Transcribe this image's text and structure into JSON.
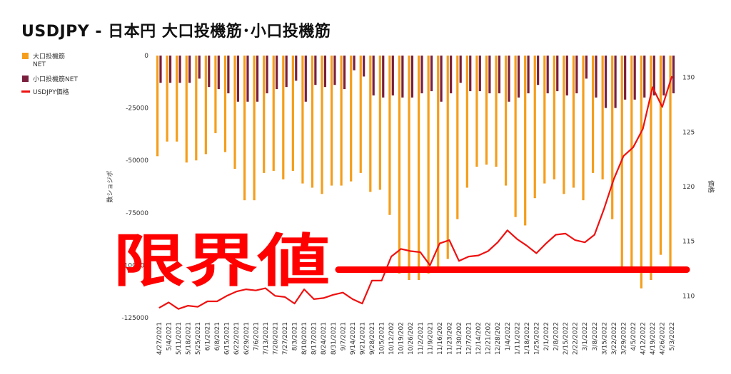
{
  "chart_data": {
    "type": "bar",
    "title": "USDJPY - 日本円 大口投機筋･小口投機筋",
    "ylabel": "数ショジポ",
    "y2label": "価格",
    "ylim": [
      -125000,
      0
    ],
    "y2lim": [
      108,
      132
    ],
    "yticks": [
      "0",
      "-25000",
      "-50000",
      "-75000",
      "-100000",
      "-125000"
    ],
    "y2ticks": [
      "130",
      "125",
      "120",
      "115",
      "110"
    ],
    "categories": [
      "4/27/2021",
      "5/4/2021",
      "5/11/2021",
      "5/18/2021",
      "5/25/2021",
      "6/1/2021",
      "6/8/2021",
      "6/15/2021",
      "6/22/2021",
      "6/29/2021",
      "7/6/2021",
      "7/13/2021",
      "7/20/2021",
      "7/27/2021",
      "8/3/2021",
      "8/10/2021",
      "8/17/2021",
      "8/24/2021",
      "8/31/2021",
      "9/7/2021",
      "9/14/2021",
      "9/21/2021",
      "9/28/2021",
      "10/5/2021",
      "10/12/2021",
      "10/19/2021",
      "10/26/2021",
      "11/2/2021",
      "11/9/2021",
      "11/16/2021",
      "11/23/2021",
      "11/30/2021",
      "12/7/2021",
      "12/14/2021",
      "12/21/2021",
      "12/28/2021",
      "1/4/2022",
      "1/11/2022",
      "1/18/2022",
      "1/25/2022",
      "2/1/2022",
      "2/8/2022",
      "2/15/2022",
      "2/22/2022",
      "3/1/2022",
      "3/8/2022",
      "3/15/2022",
      "3/22/2022",
      "3/29/2022",
      "4/5/2022",
      "4/12/2022",
      "4/19/2022",
      "4/26/2022",
      "5/3/2022"
    ],
    "xticklabels": [
      "4/27/2021",
      "5/4/2021",
      "5/11/2021",
      "5/18/2021",
      "5/25/2021",
      "6/1/2021",
      "6/8/2021",
      "6/15/2021",
      "6/22/2021",
      "6/29/2021",
      "7/6/2021",
      "7/13/2021",
      "7/20/2021",
      "7/27/2021",
      "8/3/2021",
      "8/10/2021",
      "8/17/2021",
      "8/24/2021",
      "8/31/2021",
      "9/7/2021",
      "9/14/2021",
      "9/21/2021",
      "9/28/2021",
      "10/5/2021",
      "10/12/202",
      "10/19/202",
      "10/26/202",
      "11/2/2021",
      "11/9/2021",
      "11/16/202",
      "11/23/202",
      "11/30/202",
      "12/7/2021",
      "12/14/202",
      "12/21/202",
      "12/28/202",
      "1/4/2022",
      "1/11/2022",
      "1/18/2022",
      "1/25/2022",
      "2/1/2022",
      "2/8/2022",
      "2/15/2022",
      "2/22/2022",
      "3/1/2022",
      "3/8/2022",
      "3/15/2022",
      "3/22/2022",
      "3/29/2022",
      "4/5/2022",
      "4/12/2022",
      "4/19/2022",
      "4/26/2022",
      "5/3/2022"
    ],
    "series": [
      {
        "name": "大口投機筋NET",
        "type": "bar",
        "color": "#f59e1b",
        "values": [
          -48000,
          -41000,
          -41000,
          -51000,
          -50000,
          -47000,
          -37000,
          -46000,
          -54000,
          -69000,
          -69000,
          -56000,
          -55000,
          -59000,
          -55000,
          -61000,
          -63000,
          -66000,
          -62000,
          -62000,
          -60000,
          -56000,
          -65000,
          -64000,
          -76000,
          -104000,
          -107000,
          -107000,
          -104000,
          -101000,
          -97000,
          -78000,
          -63000,
          -53000,
          -52000,
          -53000,
          -62000,
          -77000,
          -81000,
          -68000,
          -61000,
          -59000,
          -66000,
          -63000,
          -69000,
          -56000,
          -59000,
          -78000,
          -102000,
          -102000,
          -111000,
          -107000,
          -95000,
          -102000
        ]
      },
      {
        "name": "小口投機筋NET",
        "type": "bar",
        "color": "#7a1f3d",
        "values": [
          -13000,
          -13000,
          -13000,
          -13000,
          -11000,
          -15000,
          -16000,
          -18000,
          -22000,
          -22000,
          -22000,
          -18000,
          -16000,
          -15000,
          -12000,
          -22000,
          -14000,
          -15000,
          -14000,
          -16000,
          -7000,
          -10000,
          -19000,
          -20000,
          -19000,
          -20000,
          -20000,
          -18000,
          -17000,
          -22000,
          -18000,
          -13000,
          -17000,
          -17000,
          -18000,
          -18000,
          -22000,
          -20000,
          -18000,
          -14000,
          -18000,
          -17000,
          -19000,
          -18000,
          -11000,
          -20000,
          -25000,
          -25000,
          -21000,
          -21000,
          -20000,
          -19000,
          -19000,
          -18000
        ]
      },
      {
        "name": "USDJPY価格",
        "type": "line",
        "color": "#ee1111",
        "axis": "y2",
        "values": [
          108.9,
          109.4,
          108.8,
          109.1,
          109.0,
          109.5,
          109.5,
          110.0,
          110.4,
          110.6,
          110.5,
          110.7,
          110.0,
          109.9,
          109.3,
          110.6,
          109.7,
          109.8,
          110.1,
          110.3,
          109.7,
          109.3,
          111.4,
          111.4,
          113.6,
          114.3,
          114.1,
          114.0,
          112.8,
          114.8,
          115.1,
          113.2,
          113.6,
          113.7,
          114.1,
          114.9,
          116.0,
          115.2,
          114.6,
          113.9,
          114.8,
          115.6,
          115.7,
          115.1,
          114.9,
          115.6,
          118.0,
          120.7,
          122.8,
          123.6,
          125.3,
          129.1,
          127.3,
          130.1
        ]
      }
    ],
    "legend_position": "left",
    "grid": false
  },
  "annotation": {
    "text": "限界値",
    "color": "#ff0000",
    "price_level": 112.4
  }
}
